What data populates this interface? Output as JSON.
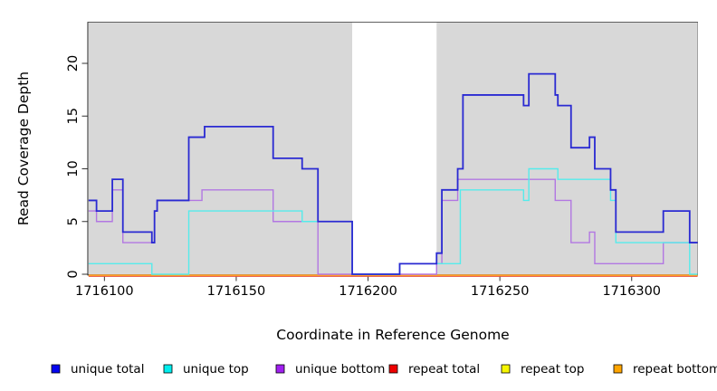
{
  "chart_data": {
    "type": "line",
    "subtype": "step-coverage",
    "title": "",
    "xlabel": "Coordinate in Reference Genome",
    "ylabel": "Read Coverage Depth",
    "xlim": [
      1716094,
      1716325
    ],
    "ylim": [
      0,
      24
    ],
    "x_ticks": [
      1716100,
      1716150,
      1716200,
      1716250,
      1716300
    ],
    "y_ticks": [
      0,
      5,
      10,
      15,
      20
    ],
    "grid": false,
    "legend_position": "bottom",
    "background_regions": [
      {
        "name": "masked-left",
        "x0": 1716094,
        "x1": 1716194,
        "color": "#d8d8d8"
      },
      {
        "name": "uncovered-gap",
        "x0": 1716194,
        "x1": 1716226,
        "color": "#ffffff"
      },
      {
        "name": "masked-right",
        "x0": 1716226,
        "x1": 1716325,
        "color": "#d8d8d8"
      }
    ],
    "x_end": 1716325,
    "series": [
      {
        "name": "repeat top",
        "color": "#f2e400",
        "swatch": "#f6f600",
        "steps": [
          [
            1716094,
            0
          ]
        ]
      },
      {
        "name": "repeat total",
        "color": "#e0394e",
        "swatch": "#ee0000",
        "steps": [
          [
            1716094,
            0
          ]
        ]
      },
      {
        "name": "repeat bottom",
        "color": "#ff9d26",
        "swatch": "#ffa500",
        "steps": [
          [
            1716094,
            0
          ]
        ]
      },
      {
        "name": "unique bottom",
        "color": "#b277e2",
        "swatch": "#a020f0",
        "steps": [
          [
            1716094,
            6
          ],
          [
            1716097,
            5
          ],
          [
            1716103,
            8
          ],
          [
            1716107,
            3
          ],
          [
            1716119,
            6
          ],
          [
            1716120,
            7
          ],
          [
            1716137,
            8
          ],
          [
            1716164,
            5
          ],
          [
            1716181,
            0
          ],
          [
            1716226,
            1
          ],
          [
            1716228,
            7
          ],
          [
            1716234,
            9
          ],
          [
            1716271,
            7
          ],
          [
            1716277,
            3
          ],
          [
            1716284,
            4
          ],
          [
            1716286,
            1
          ],
          [
            1716312,
            3
          ]
        ]
      },
      {
        "name": "unique top",
        "color": "#55ebeb",
        "swatch": "#00eeee",
        "steps": [
          [
            1716094,
            1
          ],
          [
            1716118,
            0
          ],
          [
            1716132,
            6
          ],
          [
            1716175,
            5
          ],
          [
            1716194,
            0
          ],
          [
            1716212,
            1
          ],
          [
            1716235,
            8
          ],
          [
            1716259,
            7
          ],
          [
            1716261,
            10
          ],
          [
            1716272,
            9
          ],
          [
            1716292,
            7
          ],
          [
            1716294,
            3
          ],
          [
            1716322,
            0
          ]
        ]
      },
      {
        "name": "unique total",
        "color": "#2a2ad2",
        "swatch": "#0404f0",
        "steps": [
          [
            1716094,
            7
          ],
          [
            1716097,
            6
          ],
          [
            1716103,
            9
          ],
          [
            1716107,
            4
          ],
          [
            1716118,
            3
          ],
          [
            1716119,
            6
          ],
          [
            1716120,
            7
          ],
          [
            1716132,
            13
          ],
          [
            1716138,
            14
          ],
          [
            1716164,
            11
          ],
          [
            1716175,
            10
          ],
          [
            1716181,
            5
          ],
          [
            1716194,
            0
          ],
          [
            1716212,
            1
          ],
          [
            1716226,
            2
          ],
          [
            1716228,
            8
          ],
          [
            1716234,
            10
          ],
          [
            1716236,
            17
          ],
          [
            1716259,
            16
          ],
          [
            1716261,
            19
          ],
          [
            1716271,
            17
          ],
          [
            1716272,
            16
          ],
          [
            1716277,
            12
          ],
          [
            1716284,
            13
          ],
          [
            1716286,
            10
          ],
          [
            1716292,
            8
          ],
          [
            1716294,
            4
          ],
          [
            1716312,
            6
          ],
          [
            1716322,
            3
          ]
        ]
      }
    ],
    "legend": [
      {
        "label": "unique total",
        "swatch": "#0404f0"
      },
      {
        "label": "unique top",
        "swatch": "#00eeee"
      },
      {
        "label": "unique bottom",
        "swatch": "#a020f0"
      },
      {
        "label": "repeat total",
        "swatch": "#ee0000"
      },
      {
        "label": "repeat top",
        "swatch": "#f6f600"
      },
      {
        "label": "repeat bottom",
        "swatch": "#ffa500"
      }
    ]
  }
}
